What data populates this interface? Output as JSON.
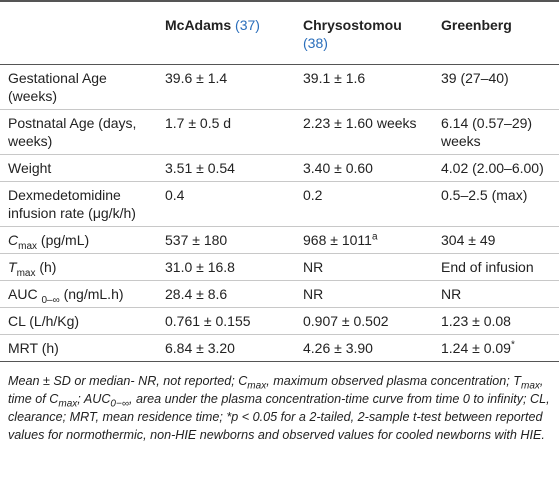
{
  "table": {
    "columns": [
      {
        "name": "McAdams",
        "ref": "(37)"
      },
      {
        "name": "Chrysostomou",
        "ref": "(38)"
      },
      {
        "name": "Greenberg"
      }
    ],
    "rows": [
      {
        "label": [
          "Gestational Age (weeks)"
        ],
        "values": [
          [
            "39.6 ± 1.4"
          ],
          [
            "39.1 ± 1.6"
          ],
          [
            "39 (27–40)"
          ]
        ]
      },
      {
        "label": [
          "Postnatal Age (days, weeks)"
        ],
        "values": [
          [
            "1.7 ± 0.5 d"
          ],
          [
            "2.23 ± 1.60 weeks"
          ],
          [
            "6.14 (0.57–29) weeks"
          ]
        ]
      },
      {
        "label": [
          "Weight"
        ],
        "values": [
          [
            "3.51 ± 0.54"
          ],
          [
            "3.40 ± 0.60"
          ],
          [
            "4.02 (2.00–6.00)"
          ]
        ]
      },
      {
        "label": [
          "Dexmedetomidine infusion rate (μg/k/h)"
        ],
        "values": [
          [
            "0.4"
          ],
          [
            "0.2"
          ],
          [
            "0.5–2.5 (max)"
          ]
        ]
      },
      {
        "label": [
          {
            "i": "C"
          },
          {
            "sub": "max"
          },
          " (pg/mL)"
        ],
        "values": [
          [
            "537 ± 180"
          ],
          [
            "968 ± 1011",
            {
              "sup": "a"
            }
          ],
          [
            "304 ± 49"
          ]
        ]
      },
      {
        "label": [
          {
            "i": "T"
          },
          {
            "sub": "max"
          },
          " (h)"
        ],
        "values": [
          [
            "31.0 ± 16.8"
          ],
          [
            "NR"
          ],
          [
            "End of infusion"
          ]
        ]
      },
      {
        "label": [
          "AUC ",
          {
            "sub": "0–∞"
          },
          " (ng/mL.h)"
        ],
        "values": [
          [
            "28.4 ± 8.6"
          ],
          [
            "NR"
          ],
          [
            "NR"
          ]
        ]
      },
      {
        "label": [
          "CL (L/h/Kg)"
        ],
        "values": [
          [
            "0.761 ± 0.155"
          ],
          [
            "0.907 ± 0.502"
          ],
          [
            "1.23 ± 0.08"
          ]
        ]
      },
      {
        "label": [
          "MRT (h)"
        ],
        "values": [
          [
            "6.84 ± 3.20"
          ],
          [
            "4.26 ± 3.90"
          ],
          [
            "1.24 ± 0.09",
            {
              "sup": "*"
            }
          ]
        ]
      }
    ]
  },
  "footnote": [
    "Mean ± SD or median- NR, not reported; C",
    {
      "sub": "max"
    },
    ", maximum observed plasma concentration; T",
    {
      "sub": "max"
    },
    ", time of C",
    {
      "sub": "max"
    },
    "; AUC",
    {
      "sub": "0−∞"
    },
    ", area under the plasma concentration-time curve from time 0 to infinity; CL, clearance; MRT, mean residence time; *p < 0.05 for a 2-tailed, 2-sample t-test between reported values for normothermic, non-HIE newborns and observed values for cooled newborns with HIE."
  ]
}
